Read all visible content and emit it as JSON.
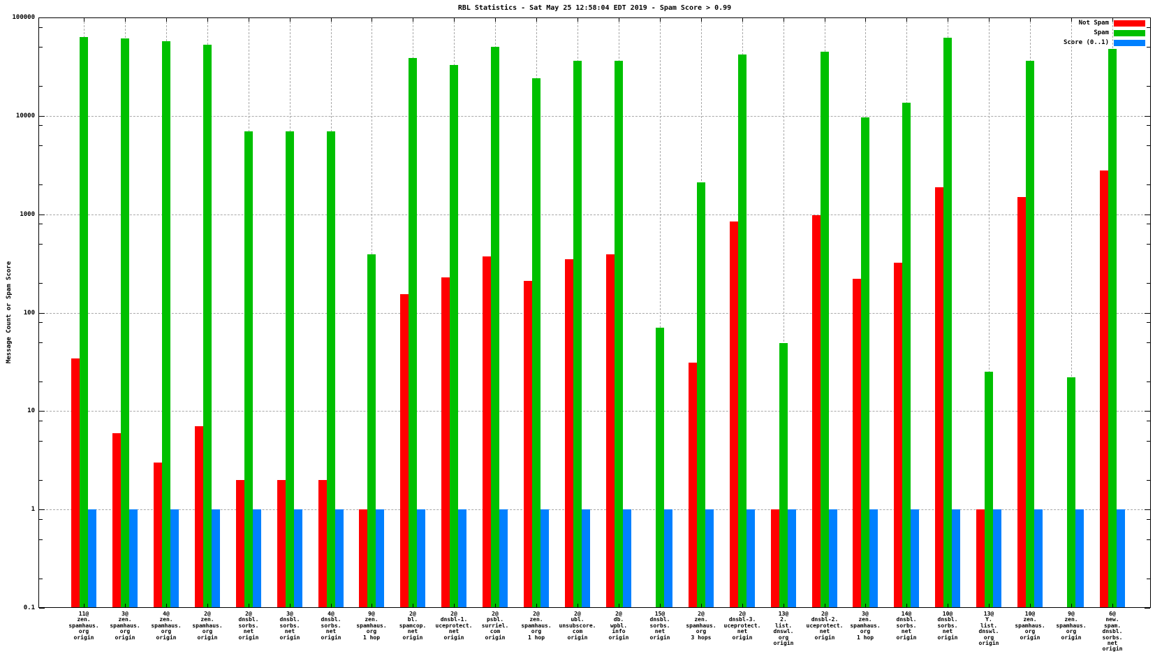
{
  "title": "RBL Statistics - Sat May 25 12:58:04 EDT 2019 - Spam Score > 0.99",
  "ylabel": "Message Count or Spam Score",
  "colors": {
    "not_spam": "#ff0000",
    "spam": "#00c000",
    "score": "#0080ff",
    "grid": "#a8a8a8",
    "axis": "#000000",
    "background": "#ffffff"
  },
  "chart_data": {
    "type": "bar",
    "title": "RBL Statistics - Sat May 25 12:58:04 EDT 2019 - Spam Score > 0.99",
    "xlabel": "",
    "ylabel": "Message Count or Spam Score",
    "yscale": "log",
    "ylim": [
      0.1,
      100000
    ],
    "ytick_labels": [
      "100000",
      "10000",
      "1000",
      "100",
      "10",
      "1",
      "0.1"
    ],
    "ytick_values": [
      100000,
      10000,
      1000,
      100,
      10,
      1,
      0.1
    ],
    "grid": true,
    "legend_position": "top-right",
    "legend_entries": [
      "Not Spam",
      "Spam",
      "Score (0..1)"
    ],
    "categories": [
      [
        "11@",
        "zen.",
        "spamhaus.",
        "org",
        "origin"
      ],
      [
        "3@",
        "zen.",
        "spamhaus.",
        "org",
        "origin"
      ],
      [
        "4@",
        "zen.",
        "spamhaus.",
        "org",
        "origin"
      ],
      [
        "2@",
        "zen.",
        "spamhaus.",
        "org",
        "origin"
      ],
      [
        "2@",
        "dnsbl.",
        "sorbs.",
        "net",
        "origin"
      ],
      [
        "3@",
        "dnsbl.",
        "sorbs.",
        "net",
        "origin"
      ],
      [
        "4@",
        "dnsbl.",
        "sorbs.",
        "net",
        "origin"
      ],
      [
        "9@",
        "zen.",
        "spamhaus.",
        "org",
        "1 hop"
      ],
      [
        "2@",
        "bl.",
        "spamcop.",
        "net",
        "origin"
      ],
      [
        "2@",
        "dnsbl-1.",
        "uceprotect.",
        "net",
        "origin"
      ],
      [
        "2@",
        "psbl.",
        "surriel.",
        "com",
        "origin"
      ],
      [
        "2@",
        "zen.",
        "spamhaus.",
        "org",
        "1 hop"
      ],
      [
        "2@",
        "ubl.",
        "unsubscore.",
        "com",
        "origin"
      ],
      [
        "2@",
        "db.",
        "wpbl.",
        "info",
        "origin"
      ],
      [
        "15@",
        "dnsbl.",
        "sorbs.",
        "net",
        "origin"
      ],
      [
        "2@",
        "zen.",
        "spamhaus.",
        "org",
        "3 hops"
      ],
      [
        "2@",
        "dnsbl-3.",
        "uceprotect.",
        "net",
        "origin"
      ],
      [
        "13@",
        "2.",
        "list.",
        "dnswl.",
        "org",
        "origin"
      ],
      [
        "2@",
        "dnsbl-2.",
        "uceprotect.",
        "net",
        "origin"
      ],
      [
        "3@",
        "zen.",
        "spamhaus.",
        "org",
        "1 hop"
      ],
      [
        "14@",
        "dnsbl.",
        "sorbs.",
        "net",
        "origin"
      ],
      [
        "10@",
        "dnsbl.",
        "sorbs.",
        "net",
        "origin"
      ],
      [
        "13@",
        "Y.",
        "list.",
        "dnswl.",
        "org",
        "origin"
      ],
      [
        "10@",
        "zen.",
        "spamhaus.",
        "org",
        "origin"
      ],
      [
        "9@",
        "zen.",
        "spamhaus.",
        "org",
        "origin"
      ],
      [
        "6@",
        "new.",
        "spam.",
        "dnsbl.",
        "sorbs.",
        "net",
        "origin"
      ]
    ],
    "series": [
      {
        "name": "Not Spam",
        "color": "#ff0000",
        "values": [
          34,
          6,
          3,
          7,
          2,
          2,
          2,
          1,
          155,
          230,
          370,
          210,
          350,
          390,
          null,
          31,
          850,
          1,
          980,
          220,
          320,
          1870,
          1,
          1500,
          null,
          2800
        ]
      },
      {
        "name": "Spam",
        "color": "#00c000",
        "values": [
          63000,
          61000,
          57000,
          53000,
          7000,
          7000,
          7000,
          390,
          39000,
          33000,
          50000,
          24000,
          36000,
          36000,
          70,
          2100,
          42000,
          49,
          45000,
          9700,
          13500,
          62000,
          25,
          36000,
          22,
          48000
        ]
      },
      {
        "name": "Score (0..1)",
        "color": "#0080ff",
        "values": [
          1,
          1,
          1,
          1,
          1,
          1,
          1,
          1,
          1,
          1,
          1,
          1,
          1,
          1,
          1,
          1,
          1,
          1,
          1,
          1,
          1,
          1,
          1,
          1,
          1,
          1
        ]
      }
    ]
  }
}
